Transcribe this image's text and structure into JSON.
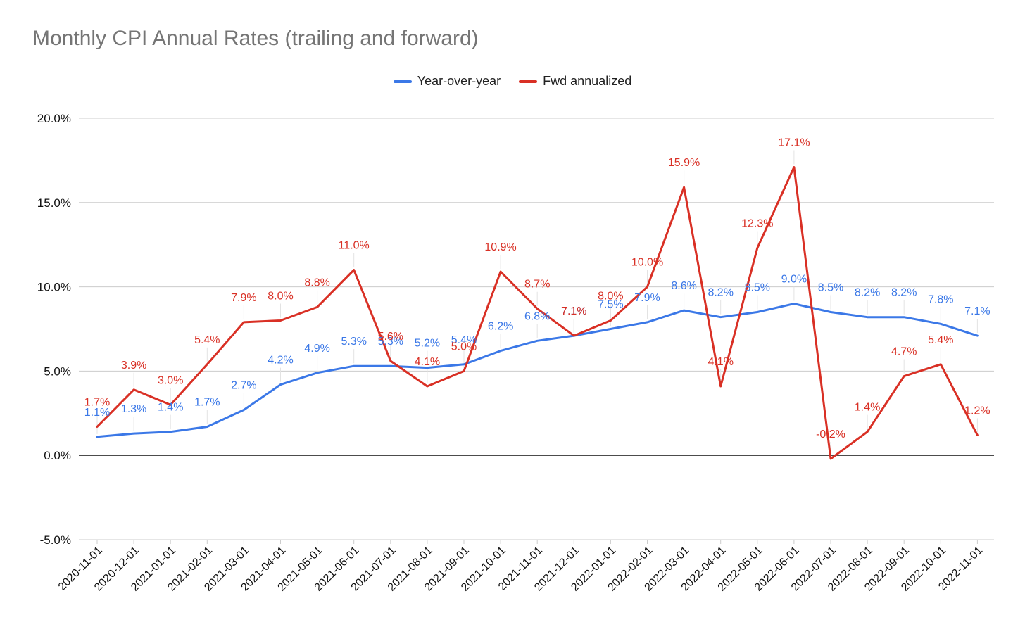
{
  "chart_data": {
    "type": "line",
    "title": "Monthly CPI Annual Rates (trailing and forward)",
    "x": [
      "2020-11-01",
      "2020-12-01",
      "2021-01-01",
      "2021-02-01",
      "2021-03-01",
      "2021-04-01",
      "2021-05-01",
      "2021-06-01",
      "2021-07-01",
      "2021-08-01",
      "2021-09-01",
      "2021-10-01",
      "2021-11-01",
      "2021-12-01",
      "2022-01-01",
      "2022-02-01",
      "2022-03-01",
      "2022-04-01",
      "2022-05-01",
      "2022-06-01",
      "2022-07-01",
      "2022-08-01",
      "2022-09-01",
      "2022-10-01",
      "2022-11-01"
    ],
    "series": [
      {
        "name": "Year-over-year",
        "color": "#3b78e7",
        "values": [
          1.1,
          1.3,
          1.4,
          1.7,
          2.7,
          4.2,
          4.9,
          5.3,
          5.3,
          5.2,
          5.4,
          6.2,
          6.8,
          7.1,
          7.5,
          7.9,
          8.6,
          8.2,
          8.5,
          9.0,
          8.5,
          8.2,
          8.2,
          7.8,
          7.1
        ],
        "labels": [
          "1.1%",
          "1.3%",
          "1.4%",
          "1.7%",
          "2.7%",
          "4.2%",
          "4.9%",
          "5.3%",
          "5.3%",
          "5.2%",
          "5.4%",
          "6.2%",
          "6.8%",
          "7.1%",
          "7.5%",
          "7.9%",
          "8.6%",
          "8.2%",
          "8.5%",
          "9.0%",
          "8.5%",
          "8.2%",
          "8.2%",
          "7.8%",
          "7.1%"
        ]
      },
      {
        "name": "Fwd annualized",
        "color": "#d93025",
        "values": [
          1.7,
          3.9,
          3.0,
          5.4,
          7.9,
          8.0,
          8.8,
          11.0,
          5.6,
          4.1,
          5.0,
          10.9,
          8.7,
          7.1,
          8.0,
          10.0,
          15.9,
          4.1,
          12.3,
          17.1,
          -0.2,
          1.4,
          4.7,
          5.4,
          1.2
        ],
        "labels": [
          "1.7%",
          "3.9%",
          "3.0%",
          "5.4%",
          "7.9%",
          "8.0%",
          "8.8%",
          "11.0%",
          "5.6%",
          "4.1%",
          "5.0%",
          "10.9%",
          "8.7%",
          "7.1%",
          "8.0%",
          "10.0%",
          "15.9%",
          "4.1%",
          "12.3%",
          "17.1%",
          "-0.2%",
          "1.4%",
          "4.7%",
          "5.4%",
          "1.2%"
        ]
      }
    ],
    "yticks": [
      -5,
      0,
      5,
      10,
      15,
      20
    ],
    "ytick_labels": [
      "-5.0%",
      "0.0%",
      "5.0%",
      "10.0%",
      "15.0%",
      "20.0%"
    ],
    "ylim": [
      -5,
      20
    ],
    "grid": true,
    "legend": "top-center"
  }
}
